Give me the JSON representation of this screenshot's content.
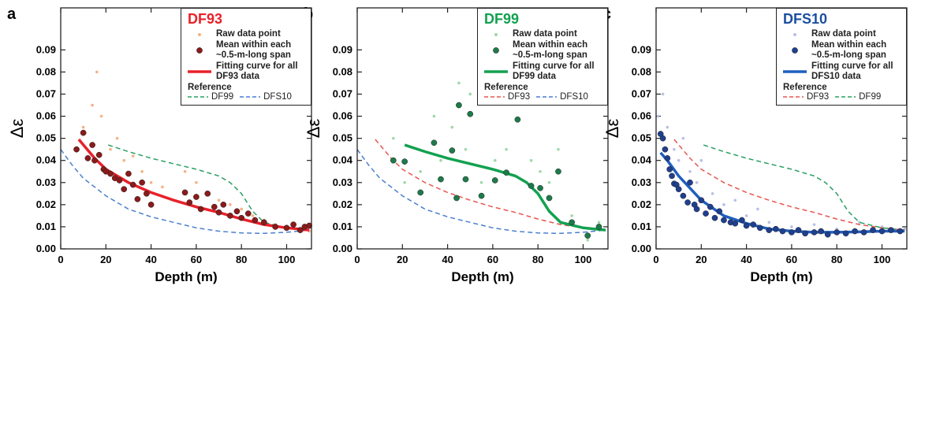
{
  "chart_data": [
    {
      "type": "scatter",
      "label": "a",
      "title": "DF93",
      "title_color": "#e8212b",
      "xlabel": "Depth (m)",
      "ylabel": "Δε",
      "xlim": [
        0,
        111
      ],
      "ylim": [
        0,
        0.109
      ],
      "xticks": [
        0,
        20,
        40,
        60,
        80,
        100
      ],
      "yticks": [
        {
          "value": 0,
          "label": "0.00"
        },
        {
          "value": 0.01,
          "label": "0.01"
        },
        {
          "value": 0.02,
          "label": "0.02"
        },
        {
          "value": 0.03,
          "label": "0.03"
        },
        {
          "value": 0.04,
          "label": "0.04"
        },
        {
          "value": 0.05,
          "label": "0.05"
        },
        {
          "value": 0.06,
          "label": "0.06"
        },
        {
          "value": 0.07,
          "label": "0.07"
        },
        {
          "value": 0.08,
          "label": "0.08"
        },
        {
          "value": 0.09,
          "label": "0.09"
        }
      ],
      "reference_label": "Reference",
      "series": [
        {
          "name": "Raw data point",
          "mark": "raw",
          "color": "#f5b183",
          "x": [
            10,
            14,
            16,
            18,
            22,
            25,
            28,
            32,
            36,
            40,
            45,
            55,
            60,
            65,
            70,
            75,
            80,
            85,
            90,
            95,
            100,
            105,
            110
          ],
          "values": [
            0.055,
            0.065,
            0.08,
            0.06,
            0.045,
            0.05,
            0.04,
            0.042,
            0.035,
            0.03,
            0.028,
            0.035,
            0.03,
            0.025,
            0.022,
            0.02,
            0.018,
            0.015,
            0.013,
            0.011,
            0.01,
            0.009,
            0.008
          ]
        },
        {
          "name": "Mean within each ~0.5-m-long span",
          "mark": "mean",
          "color": "#8b1a1a",
          "x": [
            7,
            10,
            12,
            14,
            15,
            17,
            19,
            20,
            22,
            24,
            26,
            28,
            30,
            32,
            34,
            36,
            38,
            40,
            55,
            57,
            60,
            62,
            65,
            68,
            70,
            72,
            75,
            78,
            80,
            83,
            86,
            90,
            95,
            100,
            103,
            106,
            108,
            110
          ],
          "values": [
            0.045,
            0.0525,
            0.041,
            0.047,
            0.04,
            0.0425,
            0.036,
            0.035,
            0.034,
            0.032,
            0.031,
            0.027,
            0.034,
            0.029,
            0.0225,
            0.03,
            0.025,
            0.02,
            0.0255,
            0.021,
            0.0235,
            0.018,
            0.025,
            0.019,
            0.0165,
            0.02,
            0.015,
            0.017,
            0.014,
            0.016,
            0.013,
            0.012,
            0.01,
            0.0095,
            0.011,
            0.0085,
            0.01,
            0.0105
          ]
        },
        {
          "name": "Fitting curve for all DF93 data",
          "mark": "fit",
          "color": "#e8212b",
          "x": [
            8,
            15,
            20,
            30,
            40,
            50,
            60,
            70,
            80,
            90,
            100,
            110
          ],
          "values": [
            0.0495,
            0.041,
            0.036,
            0.03,
            0.0255,
            0.022,
            0.019,
            0.0165,
            0.0135,
            0.011,
            0.0095,
            0.0085
          ]
        },
        {
          "name": "DF99",
          "mark": "reference",
          "color": "#2aa062",
          "x": [
            21,
            30,
            40,
            50,
            60,
            70,
            75,
            80,
            85,
            90,
            100,
            110
          ],
          "values": [
            0.047,
            0.044,
            0.041,
            0.0385,
            0.036,
            0.033,
            0.03,
            0.025,
            0.017,
            0.012,
            0.0095,
            0.0085
          ]
        },
        {
          "name": "DFS10",
          "mark": "reference",
          "color": "#4a7fd0",
          "x": [
            0,
            5,
            10,
            20,
            30,
            40,
            50,
            60,
            70,
            80,
            90,
            100,
            110
          ],
          "values": [
            0.045,
            0.038,
            0.032,
            0.024,
            0.018,
            0.0145,
            0.012,
            0.0095,
            0.008,
            0.0072,
            0.007,
            0.0075,
            0.0085
          ]
        }
      ]
    },
    {
      "type": "scatter",
      "label": "b",
      "title": "DF99",
      "title_color": "#12a150",
      "xlabel": "Depth (m)",
      "ylabel": "Δε",
      "xlim": [
        0,
        111
      ],
      "ylim": [
        0,
        0.109
      ],
      "xticks": [
        0,
        20,
        40,
        60,
        80,
        100
      ],
      "yticks": [
        {
          "value": 0,
          "label": "0.00"
        },
        {
          "value": 0.01,
          "label": "0.01"
        },
        {
          "value": 0.02,
          "label": "0.02"
        },
        {
          "value": 0.03,
          "label": "0.03"
        },
        {
          "value": 0.04,
          "label": "0.04"
        },
        {
          "value": 0.05,
          "label": "0.05"
        },
        {
          "value": 0.06,
          "label": "0.06"
        },
        {
          "value": 0.07,
          "label": "0.07"
        },
        {
          "value": 0.08,
          "label": "0.08"
        },
        {
          "value": 0.09,
          "label": "0.09"
        }
      ],
      "reference_label": "Reference",
      "series": [
        {
          "name": "Raw data point",
          "mark": "raw",
          "color": "#9ed8a8",
          "x": [
            16,
            21,
            28,
            34,
            37,
            42,
            45,
            48,
            50,
            55,
            61,
            66,
            71,
            77,
            81,
            85,
            89,
            95,
            102,
            107
          ],
          "values": [
            0.05,
            0.03,
            0.035,
            0.06,
            0.04,
            0.055,
            0.075,
            0.045,
            0.07,
            0.03,
            0.04,
            0.045,
            0.067,
            0.04,
            0.035,
            0.03,
            0.045,
            0.015,
            0.004,
            0.012
          ]
        },
        {
          "name": "Mean within each ~0.5-m-long span",
          "mark": "mean",
          "color": "#1d7a4a",
          "x": [
            16,
            21,
            28,
            34,
            37,
            42,
            44,
            45,
            48,
            50,
            55,
            61,
            66,
            71,
            77,
            81,
            85,
            89,
            95,
            102,
            107
          ],
          "values": [
            0.04,
            0.0395,
            0.0255,
            0.048,
            0.0315,
            0.0445,
            0.023,
            0.065,
            0.0315,
            0.061,
            0.024,
            0.031,
            0.0345,
            0.0585,
            0.0285,
            0.0275,
            0.023,
            0.035,
            0.012,
            0.006,
            0.01
          ]
        },
        {
          "name": "Fitting curve for all DF99 data",
          "mark": "fit",
          "color": "#12a150",
          "x": [
            21,
            30,
            40,
            50,
            60,
            70,
            75,
            80,
            85,
            90,
            100,
            110
          ],
          "values": [
            0.047,
            0.044,
            0.041,
            0.0385,
            0.036,
            0.033,
            0.03,
            0.025,
            0.017,
            0.012,
            0.0095,
            0.0085
          ]
        },
        {
          "name": "DF93",
          "mark": "reference",
          "color": "#e8574f",
          "x": [
            8,
            15,
            20,
            30,
            40,
            50,
            60,
            70,
            80,
            90,
            100,
            110
          ],
          "values": [
            0.0495,
            0.041,
            0.036,
            0.03,
            0.0255,
            0.022,
            0.019,
            0.0165,
            0.0135,
            0.011,
            0.0095,
            0.0085
          ]
        },
        {
          "name": "DFS10",
          "mark": "reference",
          "color": "#4a7fd0",
          "x": [
            0,
            5,
            10,
            20,
            30,
            40,
            50,
            60,
            70,
            80,
            90,
            100,
            110
          ],
          "values": [
            0.045,
            0.038,
            0.032,
            0.024,
            0.018,
            0.0145,
            0.012,
            0.0095,
            0.008,
            0.0072,
            0.007,
            0.0075,
            0.0085
          ]
        }
      ]
    },
    {
      "type": "scatter",
      "label": "c",
      "title": "DFS10",
      "title_color": "#1b4fa0",
      "xlabel": "Depth (m)",
      "ylabel": "Δε",
      "xlim": [
        0,
        111
      ],
      "ylim": [
        0,
        0.109
      ],
      "xticks": [
        0,
        20,
        40,
        60,
        80,
        100
      ],
      "yticks": [
        {
          "value": 0,
          "label": "0.00"
        },
        {
          "value": 0.01,
          "label": "0.01"
        },
        {
          "value": 0.02,
          "label": "0.02"
        },
        {
          "value": 0.03,
          "label": "0.03"
        },
        {
          "value": 0.04,
          "label": "0.04"
        },
        {
          "value": 0.05,
          "label": "0.05"
        },
        {
          "value": 0.06,
          "label": "0.06"
        },
        {
          "value": 0.07,
          "label": "0.07"
        },
        {
          "value": 0.08,
          "label": "0.08"
        },
        {
          "value": 0.09,
          "label": "0.09"
        }
      ],
      "reference_label": "Reference",
      "series": [
        {
          "name": "Raw data point",
          "mark": "raw",
          "color": "#b8c0e6",
          "x": [
            1,
            3,
            5,
            8,
            10,
            12,
            15,
            18,
            20,
            25,
            30,
            35,
            40,
            45,
            50,
            60,
            70,
            80,
            90,
            100,
            110
          ],
          "values": [
            0.06,
            0.07,
            0.055,
            0.045,
            0.04,
            0.05,
            0.035,
            0.03,
            0.04,
            0.025,
            0.02,
            0.022,
            0.015,
            0.018,
            0.012,
            0.01,
            0.011,
            0.009,
            0.012,
            0.01,
            0.009
          ]
        },
        {
          "name": "Mean within each ~0.5-m-long span",
          "mark": "mean",
          "color": "#1f3f8f",
          "x": [
            2,
            3,
            4,
            5,
            6,
            7,
            8,
            9,
            10,
            12,
            14,
            15,
            17,
            18,
            20,
            22,
            24,
            26,
            28,
            30,
            33,
            35,
            38,
            40,
            43,
            46,
            50,
            53,
            56,
            60,
            63,
            66,
            70,
            73,
            76,
            80,
            84,
            88,
            92,
            96,
            100,
            104,
            108
          ],
          "values": [
            0.052,
            0.05,
            0.045,
            0.041,
            0.036,
            0.033,
            0.0295,
            0.029,
            0.027,
            0.024,
            0.021,
            0.03,
            0.02,
            0.018,
            0.022,
            0.016,
            0.019,
            0.014,
            0.017,
            0.013,
            0.012,
            0.0115,
            0.013,
            0.0105,
            0.011,
            0.0095,
            0.0085,
            0.009,
            0.008,
            0.0075,
            0.0085,
            0.007,
            0.0075,
            0.008,
            0.0065,
            0.0075,
            0.007,
            0.008,
            0.0075,
            0.0085,
            0.008,
            0.0085,
            0.008
          ]
        },
        {
          "name": "Fitting curve for all DFS10 data",
          "mark": "fit",
          "color": "#1f5fbf",
          "x": [
            2,
            5,
            10,
            20,
            30,
            40,
            50,
            60,
            70,
            80,
            90,
            100,
            110
          ],
          "values": [
            0.0435,
            0.04,
            0.033,
            0.022,
            0.015,
            0.0115,
            0.009,
            0.008,
            0.0075,
            0.0075,
            0.0077,
            0.008,
            0.008
          ]
        },
        {
          "name": "DF93",
          "mark": "reference",
          "color": "#e8574f",
          "x": [
            8,
            15,
            20,
            30,
            40,
            50,
            60,
            70,
            80,
            90,
            100,
            110
          ],
          "values": [
            0.0495,
            0.041,
            0.036,
            0.03,
            0.0255,
            0.022,
            0.019,
            0.0165,
            0.0135,
            0.011,
            0.0095,
            0.0085
          ]
        },
        {
          "name": "DF99",
          "mark": "reference",
          "color": "#2aa062",
          "x": [
            21,
            30,
            40,
            50,
            60,
            70,
            75,
            80,
            85,
            90,
            100,
            110
          ],
          "values": [
            0.047,
            0.044,
            0.041,
            0.0385,
            0.036,
            0.033,
            0.03,
            0.025,
            0.017,
            0.012,
            0.0095,
            0.0085
          ]
        }
      ]
    }
  ]
}
